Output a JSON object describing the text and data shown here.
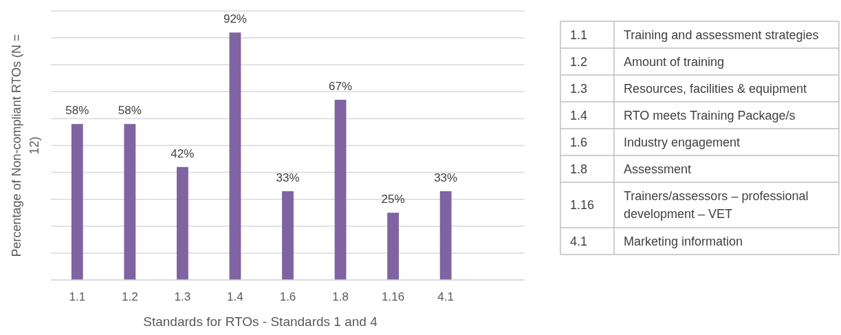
{
  "chart_data": {
    "type": "bar",
    "categories": [
      "1.1",
      "1.2",
      "1.3",
      "1.4",
      "1.6",
      "1.8",
      "1.16",
      "4.1",
      null
    ],
    "values": [
      58,
      58,
      42,
      92,
      33,
      67,
      25,
      33,
      null
    ],
    "value_labels": [
      "58%",
      "58%",
      "42%",
      "92%",
      "33%",
      "67%",
      "25%",
      "33%",
      null
    ],
    "color": "#8064a2",
    "ylim": [
      0,
      100
    ],
    "yticks": [
      {
        "value": 0,
        "label": null
      },
      {
        "value": 10,
        "label": null
      },
      {
        "value": 20,
        "label": null
      },
      {
        "value": 30,
        "label": null
      },
      {
        "value": 40,
        "label": null
      },
      {
        "value": 50,
        "label": null
      },
      {
        "value": 60,
        "label": null
      },
      {
        "value": 70,
        "label": null
      },
      {
        "value": 80,
        "label": null
      },
      {
        "value": 90,
        "label": null
      },
      {
        "value": 100,
        "label": null
      }
    ],
    "grid": "y",
    "xlabel": "Standards for RTOs - Standards 1 and 4",
    "ylabel": "Percentage of Non-compliant RTOs (N = 12)",
    "annotations": [
      "1.1",
      "Training and assessment strategies",
      "1.2",
      "Amount of training",
      "1.3",
      "Resources, facilities & equipment",
      "1.4",
      "RTO meets Training Package/s",
      "1.6",
      "Industry engagement",
      "1.8",
      "Assessment",
      "1.16",
      "Trainers/assessors – professional development – VET",
      "4.1",
      "Marketing information"
    ]
  }
}
